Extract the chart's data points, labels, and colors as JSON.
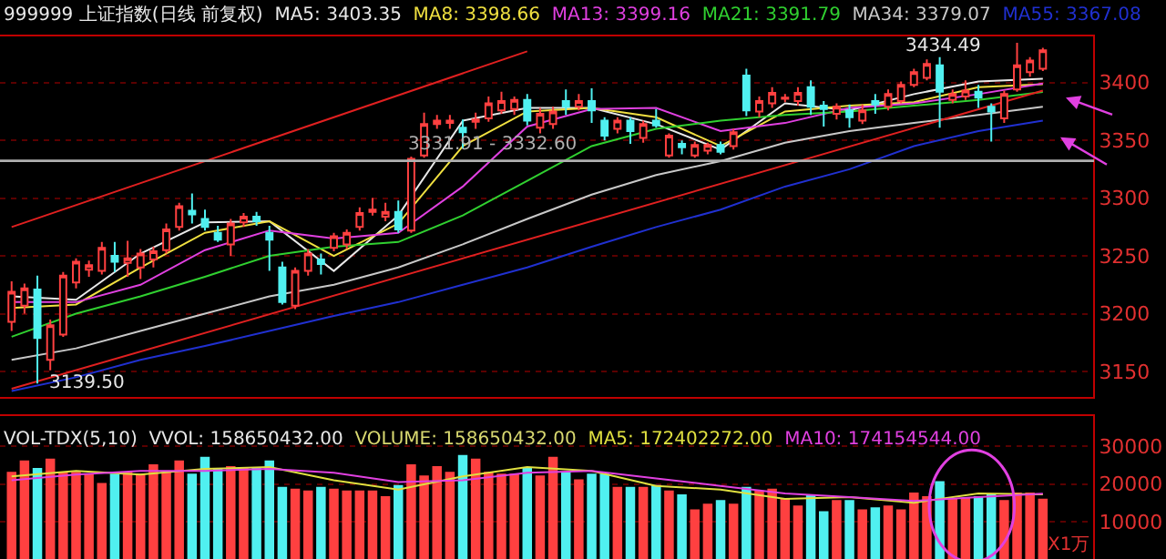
{
  "chart_data": [
    {
      "type": "candlestick",
      "title": "999999 上证指数(日线 前复权)",
      "categories": [
        null,
        null,
        null,
        null,
        null,
        null,
        null,
        null,
        null,
        null,
        null,
        null,
        null,
        null,
        null,
        null,
        null,
        null,
        null,
        null,
        null,
        null,
        null,
        null,
        null,
        null,
        null,
        null,
        null,
        null,
        null,
        null,
        null,
        null,
        null,
        null,
        null,
        null,
        null,
        null,
        null,
        null,
        null,
        null,
        null,
        null,
        null,
        null,
        null,
        null,
        null,
        null,
        null,
        null,
        null,
        null,
        null,
        null,
        null,
        null,
        null,
        null,
        null,
        null,
        null,
        null,
        null,
        null,
        null,
        null,
        null,
        null,
        null,
        null,
        null,
        null,
        null,
        null,
        null,
        null,
        null
      ],
      "ohlc": [
        [
          3193,
          3228,
          3185,
          3219
        ],
        [
          3207,
          3226,
          3200,
          3222
        ],
        [
          3221,
          3233,
          3139.5,
          3179
        ],
        [
          3160,
          3195,
          3151,
          3190
        ],
        [
          3182,
          3236,
          3180,
          3233
        ],
        [
          3227,
          3248,
          3222,
          3245
        ],
        [
          3238,
          3246,
          3232,
          3242
        ],
        [
          3237,
          3262,
          3234,
          3257
        ],
        [
          3250,
          3262,
          3236,
          3245
        ],
        [
          3244,
          3263,
          3232,
          3248
        ],
        [
          3240,
          3256,
          3230,
          3252
        ],
        [
          3247,
          3258,
          3240,
          3254
        ],
        [
          3255,
          3278,
          3252,
          3273
        ],
        [
          3275,
          3296,
          3272,
          3293
        ],
        [
          3289,
          3304,
          3278,
          3286
        ],
        [
          3282,
          3290,
          3272,
          3275
        ],
        [
          3270,
          3276,
          3262,
          3264
        ],
        [
          3260,
          3282,
          3250,
          3278
        ],
        [
          3279,
          3287,
          3275,
          3284
        ],
        [
          3284,
          3288,
          3276,
          3280
        ],
        [
          3270,
          3276,
          3237,
          3264
        ],
        [
          3240,
          3245,
          3208,
          3210
        ],
        [
          3207,
          3240,
          3204,
          3237
        ],
        [
          3237,
          3256,
          3233,
          3252
        ],
        [
          3247,
          3252,
          3234,
          3243
        ],
        [
          3257,
          3270,
          3254,
          3267
        ],
        [
          3260,
          3273,
          3256,
          3270
        ],
        [
          3275,
          3292,
          3272,
          3287
        ],
        [
          3288,
          3300,
          3285,
          3290
        ],
        [
          3284,
          3296,
          3280,
          3288
        ],
        [
          3288,
          3298,
          3270,
          3273
        ],
        [
          3272,
          3336,
          3270,
          3334
        ],
        [
          3337,
          3374,
          3335,
          3364
        ],
        [
          3364,
          3372,
          3360,
          3367
        ],
        [
          3365,
          3372,
          3360,
          3367
        ],
        [
          3361,
          3368,
          3343,
          3357
        ],
        [
          3366,
          3374,
          3360,
          3368
        ],
        [
          3369,
          3388,
          3366,
          3382
        ],
        [
          3376,
          3392,
          3373,
          3384
        ],
        [
          3377,
          3388,
          3372,
          3385
        ],
        [
          3385,
          3390,
          3363,
          3367
        ],
        [
          3361,
          3378,
          3356,
          3373
        ],
        [
          3364,
          3379,
          3360,
          3375
        ],
        [
          3384,
          3394,
          3372,
          3379
        ],
        [
          3379,
          3390,
          3376,
          3384
        ],
        [
          3384,
          3395,
          3365,
          3376
        ],
        [
          3367,
          3370,
          3350,
          3354
        ],
        [
          3360,
          3370,
          3356,
          3367
        ],
        [
          3367,
          3370,
          3347,
          3358
        ],
        [
          3352,
          3367,
          3348,
          3364
        ],
        [
          3367,
          3377,
          3361,
          3363
        ],
        [
          3337,
          3356,
          3335,
          3354
        ],
        [
          3347,
          3350,
          3338,
          3344
        ],
        [
          3337,
          3349,
          3335,
          3346
        ],
        [
          3341,
          3348,
          3338,
          3346
        ],
        [
          3346,
          3349,
          3338,
          3340
        ],
        [
          3345,
          3360,
          3342,
          3357
        ],
        [
          3406,
          3412,
          3371,
          3376
        ],
        [
          3375,
          3388,
          3370,
          3384
        ],
        [
          3382,
          3396,
          3378,
          3391
        ],
        [
          3386,
          3390,
          3383,
          3387
        ],
        [
          3384,
          3396,
          3380,
          3391
        ],
        [
          3396,
          3402,
          3372,
          3379
        ],
        [
          3380,
          3384,
          3362,
          3377
        ],
        [
          3373,
          3382,
          3368,
          3379
        ],
        [
          3376,
          3381,
          3361,
          3370
        ],
        [
          3367,
          3381,
          3364,
          3376
        ],
        [
          3384,
          3390,
          3373,
          3381
        ],
        [
          3379,
          3394,
          3376,
          3390
        ],
        [
          3384,
          3401,
          3382,
          3398
        ],
        [
          3398,
          3412,
          3396,
          3409
        ],
        [
          3404,
          3420,
          3402,
          3416
        ],
        [
          3415,
          3422,
          3361,
          3392
        ],
        [
          3385,
          3394,
          3382,
          3390
        ],
        [
          3388,
          3402,
          3385,
          3393
        ],
        [
          3392,
          3398,
          3378,
          3387
        ],
        [
          3379,
          3382,
          3349,
          3375
        ],
        [
          3369,
          3393,
          3365,
          3390
        ],
        [
          3394,
          3434.49,
          3392,
          3415
        ],
        [
          3409,
          3422,
          3405,
          3419
        ],
        [
          3412,
          3430,
          3410,
          3428
        ]
      ],
      "colors": [
        "#ff4040",
        "#ff4040",
        "#50f0f0",
        "#ff4040",
        "#ff4040",
        "#ff4040",
        "#ff4040",
        "#ff4040",
        "#50f0f0",
        "#ff4040",
        "#ff4040",
        "#ff4040",
        "#ff4040",
        "#ff4040",
        "#50f0f0",
        "#50f0f0",
        "#50f0f0",
        "#ff4040",
        "#ff4040",
        "#50f0f0",
        "#50f0f0",
        "#50f0f0",
        "#ff4040",
        "#ff4040",
        "#50f0f0",
        "#ff4040",
        "#ff4040",
        "#ff4040",
        "#ff4040",
        "#ff4040",
        "#50f0f0",
        "#ff4040",
        "#ff4040",
        "#ff4040",
        "#ff4040",
        "#50f0f0",
        "#ff4040",
        "#ff4040",
        "#ff4040",
        "#ff4040",
        "#50f0f0",
        "#ff4040",
        "#ff4040",
        "#50f0f0",
        "#ff4040",
        "#50f0f0",
        "#50f0f0",
        "#ff4040",
        "#50f0f0",
        "#ff4040",
        "#50f0f0",
        "#ff4040",
        "#50f0f0",
        "#ff4040",
        "#ff4040",
        "#50f0f0",
        "#ff4040",
        "#50f0f0",
        "#ff4040",
        "#ff4040",
        "#ff4040",
        "#ff4040",
        "#50f0f0",
        "#50f0f0",
        "#ff4040",
        "#50f0f0",
        "#ff4040",
        "#50f0f0",
        "#ff4040",
        "#ff4040",
        "#ff4040",
        "#ff4040",
        "#50f0f0",
        "#ff4040",
        "#ff4040",
        "#50f0f0",
        "#50f0f0",
        "#ff4040",
        "#ff4040",
        "#ff4040",
        "#ff4040"
      ],
      "series": [
        {
          "type": "line",
          "name": "MA5: 3403.35",
          "color": "#e8e8e8",
          "values": [
            3215,
            null,
            null,
            null,
            null,
            3212,
            null,
            null,
            null,
            null,
            3252,
            null,
            null,
            null,
            null,
            3279,
            null,
            null,
            null,
            null,
            3280,
            null,
            null,
            null,
            null,
            3237,
            null,
            null,
            null,
            null,
            3285,
            null,
            null,
            null,
            null,
            3367,
            null,
            null,
            null,
            null,
            3378,
            null,
            null,
            null,
            null,
            3378,
            null,
            null,
            null,
            null,
            3364,
            null,
            null,
            null,
            null,
            3342,
            null,
            null,
            null,
            null,
            3382,
            null,
            null,
            null,
            null,
            3376,
            null,
            null,
            null,
            null,
            3390,
            null,
            null,
            null,
            null,
            3401,
            null,
            null,
            null,
            null,
            3403.35
          ]
        },
        {
          "type": "line",
          "name": "MA8: 3398.66",
          "color": "#f0e040",
          "values": [
            3205,
            null,
            null,
            null,
            null,
            3208,
            null,
            null,
            null,
            null,
            3240,
            null,
            null,
            null,
            null,
            3270,
            null,
            null,
            null,
            null,
            3280,
            null,
            null,
            null,
            null,
            3250,
            null,
            null,
            null,
            null,
            3278,
            null,
            null,
            null,
            null,
            3345,
            null,
            null,
            null,
            null,
            3375,
            null,
            null,
            null,
            null,
            3378,
            null,
            null,
            null,
            null,
            3370,
            null,
            null,
            null,
            null,
            3345,
            null,
            null,
            null,
            null,
            3375,
            null,
            null,
            null,
            null,
            3380,
            null,
            null,
            null,
            null,
            3383,
            null,
            null,
            null,
            null,
            3396,
            null,
            null,
            null,
            null,
            3398.66
          ]
        },
        {
          "type": "line",
          "name": "MA13: 3399.16",
          "color": "#e040e0",
          "values": [
            3210,
            null,
            null,
            null,
            null,
            3210,
            null,
            null,
            null,
            null,
            3225,
            null,
            null,
            null,
            null,
            3255,
            null,
            null,
            null,
            null,
            3272,
            null,
            null,
            null,
            null,
            3265,
            null,
            null,
            null,
            null,
            3270,
            null,
            null,
            null,
            null,
            3310,
            null,
            null,
            null,
            null,
            3362,
            null,
            null,
            null,
            null,
            3377,
            null,
            null,
            null,
            null,
            3378,
            null,
            null,
            null,
            null,
            3358,
            null,
            null,
            null,
            null,
            3365,
            null,
            null,
            null,
            null,
            3378,
            null,
            null,
            null,
            null,
            3382,
            null,
            null,
            null,
            null,
            3390,
            null,
            null,
            null,
            null,
            3399.16
          ]
        },
        {
          "type": "line",
          "name": "MA21: 3391.79",
          "color": "#30d030",
          "values": [
            3180,
            null,
            null,
            null,
            null,
            3200,
            null,
            null,
            null,
            null,
            3215,
            null,
            null,
            null,
            null,
            3232,
            null,
            null,
            null,
            null,
            3250,
            null,
            null,
            null,
            null,
            3258,
            null,
            null,
            null,
            null,
            3262,
            null,
            null,
            null,
            null,
            3285,
            null,
            null,
            null,
            null,
            3315,
            null,
            null,
            null,
            null,
            3345,
            null,
            null,
            null,
            null,
            3360,
            null,
            null,
            null,
            null,
            3367,
            null,
            null,
            null,
            null,
            3372,
            null,
            null,
            null,
            null,
            3375,
            null,
            null,
            null,
            null,
            3380,
            null,
            null,
            null,
            null,
            3385,
            null,
            null,
            null,
            null,
            3391.79
          ]
        },
        {
          "type": "line",
          "name": "MA34: 3379.07",
          "color": "#c8c8c8",
          "values": [
            3160,
            null,
            null,
            null,
            null,
            3170,
            null,
            null,
            null,
            null,
            3185,
            null,
            null,
            null,
            null,
            3200,
            null,
            null,
            null,
            null,
            3215,
            null,
            null,
            null,
            null,
            3225,
            null,
            null,
            null,
            null,
            3240,
            null,
            null,
            null,
            null,
            3260,
            null,
            null,
            null,
            null,
            3282,
            null,
            null,
            null,
            null,
            3303,
            null,
            null,
            null,
            null,
            3320,
            null,
            null,
            null,
            null,
            3332,
            null,
            null,
            null,
            null,
            3348,
            null,
            null,
            null,
            null,
            3358,
            null,
            null,
            null,
            null,
            3365,
            null,
            null,
            null,
            null,
            3372,
            null,
            null,
            null,
            null,
            3379.07
          ]
        },
        {
          "type": "line",
          "name": "MA55: 3367.08",
          "color": "#2030d0",
          "values": [
            3133,
            null,
            null,
            null,
            null,
            3145,
            null,
            null,
            null,
            null,
            3160,
            null,
            null,
            null,
            null,
            3172,
            null,
            null,
            null,
            null,
            3185,
            null,
            null,
            null,
            null,
            3198,
            null,
            null,
            null,
            null,
            3210,
            null,
            null,
            null,
            null,
            3225,
            null,
            null,
            null,
            null,
            3240,
            null,
            null,
            null,
            null,
            3258,
            null,
            null,
            null,
            null,
            3275,
            null,
            null,
            null,
            null,
            3290,
            null,
            null,
            null,
            null,
            3310,
            null,
            null,
            null,
            null,
            3325,
            null,
            null,
            null,
            null,
            3345,
            null,
            null,
            null,
            null,
            3358,
            null,
            null,
            null,
            null,
            3367.08
          ]
        },
        {
          "type": "line",
          "color": "#e02020",
          "values": [
            3275,
            null,
            null,
            null,
            null,
            null,
            null,
            null,
            null,
            null,
            null,
            null,
            null,
            null,
            null,
            null,
            null,
            null,
            null,
            null,
            null,
            null,
            null,
            null,
            null,
            null,
            null,
            null,
            null,
            null,
            null,
            null,
            null,
            null,
            null,
            null,
            null,
            null,
            null,
            null,
            3427,
            null,
            null,
            null,
            null,
            null,
            null,
            null,
            null,
            null,
            null,
            null,
            null,
            null,
            null,
            null,
            null,
            null,
            null,
            null,
            null,
            null,
            null,
            null,
            null,
            null,
            null,
            null,
            null,
            null,
            null,
            null,
            null,
            null,
            null,
            null,
            null,
            null,
            null,
            null,
            null
          ]
        },
        {
          "type": "line",
          "color": "#e02020",
          "values": [
            3135,
            null,
            null,
            null,
            null,
            null,
            null,
            null,
            null,
            null,
            null,
            null,
            null,
            null,
            null,
            null,
            null,
            null,
            null,
            null,
            null,
            null,
            null,
            null,
            null,
            null,
            null,
            null,
            null,
            null,
            null,
            null,
            null,
            null,
            null,
            null,
            null,
            null,
            null,
            null,
            null,
            null,
            null,
            null,
            null,
            null,
            null,
            null,
            null,
            null,
            null,
            null,
            null,
            null,
            null,
            null,
            null,
            null,
            null,
            null,
            null,
            null,
            null,
            null,
            null,
            null,
            null,
            null,
            null,
            null,
            null,
            null,
            null,
            null,
            null,
            null,
            null,
            null,
            null,
            null,
            3393
          ]
        }
      ],
      "ylim": [
        3128,
        3440
      ],
      "yticks": [
        3150,
        3200,
        3250,
        3300,
        3350,
        3400
      ],
      "grid": "y",
      "tick_labels": "y",
      "bands": [
        {
          "axis": "y",
          "from": 3331.91,
          "to": 3332.6,
          "label": "3331.91 - 3332.60",
          "color": "#b0b0b0"
        }
      ],
      "annotations": [
        {
          "text": "3139.50",
          "y": 3139.5
        },
        "3434.49"
      ]
    },
    {
      "type": "bar",
      "title": "VOL-TDX(5,10)",
      "ylabel": "X1万",
      "categories": [
        null,
        null,
        null,
        null,
        null,
        null,
        null,
        null,
        null,
        null,
        null,
        null,
        null,
        null,
        null,
        null,
        null,
        null,
        null,
        null,
        null,
        null,
        null,
        null,
        null,
        null,
        null,
        null,
        null,
        null,
        null,
        null,
        null,
        null,
        null,
        null,
        null,
        null,
        null,
        null,
        null,
        null,
        null,
        null,
        null,
        null,
        null,
        null,
        null,
        null,
        null,
        null,
        null,
        null,
        null,
        null,
        null,
        null,
        null,
        null,
        null,
        null,
        null,
        null,
        null,
        null,
        null,
        null,
        null,
        null,
        null,
        null,
        null,
        null,
        null,
        null,
        null,
        null,
        null,
        null,
        null
      ],
      "series": [
        {
          "type": "bar",
          "name": "VOLUME: 158650432.00",
          "colors": [
            "#ff4040",
            "#ff4040",
            "#50f0f0",
            "#ff4040",
            "#ff4040",
            "#ff4040",
            "#ff4040",
            "#ff4040",
            "#50f0f0",
            "#ff4040",
            "#ff4040",
            "#ff4040",
            "#ff4040",
            "#ff4040",
            "#50f0f0",
            "#50f0f0",
            "#50f0f0",
            "#ff4040",
            "#ff4040",
            "#50f0f0",
            "#50f0f0",
            "#50f0f0",
            "#ff4040",
            "#ff4040",
            "#50f0f0",
            "#ff4040",
            "#ff4040",
            "#ff4040",
            "#ff4040",
            "#ff4040",
            "#50f0f0",
            "#ff4040",
            "#ff4040",
            "#ff4040",
            "#ff4040",
            "#50f0f0",
            "#ff4040",
            "#ff4040",
            "#ff4040",
            "#ff4040",
            "#50f0f0",
            "#ff4040",
            "#ff4040",
            "#50f0f0",
            "#ff4040",
            "#50f0f0",
            "#50f0f0",
            "#ff4040",
            "#50f0f0",
            "#ff4040",
            "#50f0f0",
            "#ff4040",
            "#50f0f0",
            "#ff4040",
            "#ff4040",
            "#50f0f0",
            "#ff4040",
            "#50f0f0",
            "#ff4040",
            "#ff4040",
            "#ff4040",
            "#ff4040",
            "#50f0f0",
            "#50f0f0",
            "#ff4040",
            "#50f0f0",
            "#ff4040",
            "#50f0f0",
            "#ff4040",
            "#ff4040",
            "#ff4040",
            "#ff4040",
            "#50f0f0",
            "#ff4040",
            "#ff4040",
            "#50f0f0",
            "#50f0f0",
            "#ff4040",
            "#ff4040",
            "#ff4040",
            "#ff4040"
          ],
          "values": [
            23000,
            26000,
            24000,
            26500,
            23000,
            23000,
            22500,
            20000,
            22500,
            23000,
            22500,
            25000,
            23000,
            26000,
            22500,
            27000,
            24000,
            24500,
            24000,
            24000,
            26000,
            19000,
            18500,
            18000,
            19000,
            18500,
            18000,
            18000,
            18000,
            16500,
            19500,
            25000,
            22000,
            24500,
            23000,
            27500,
            26500,
            23000,
            22500,
            22500,
            24000,
            22000,
            27000,
            23000,
            21000,
            22500,
            22500,
            19000,
            19000,
            19000,
            19500,
            18000,
            17000,
            13000,
            14500,
            15500,
            14500,
            19000,
            18000,
            18500,
            16000,
            14000,
            17000,
            12500,
            15500,
            15500,
            13000,
            13500,
            14000,
            13000,
            17500,
            16500,
            20500,
            16000,
            16000,
            16500,
            17000,
            15500,
            17500,
            17500,
            15865
          ]
        },
        {
          "type": "line",
          "name": "MA5: 172402272.00",
          "color": "#e0e040",
          "values": [
            22000,
            null,
            null,
            null,
            null,
            23500,
            null,
            null,
            null,
            null,
            22500,
            null,
            null,
            null,
            null,
            24000,
            null,
            null,
            null,
            null,
            24500,
            null,
            null,
            null,
            null,
            21000,
            null,
            null,
            null,
            null,
            18500,
            null,
            null,
            null,
            null,
            22000,
            null,
            null,
            null,
            null,
            24500,
            null,
            null,
            null,
            null,
            23500,
            null,
            null,
            null,
            null,
            19500,
            null,
            null,
            null,
            null,
            18500,
            null,
            null,
            null,
            null,
            16000,
            null,
            null,
            null,
            null,
            16500,
            null,
            null,
            null,
            null,
            15000,
            null,
            null,
            null,
            null,
            17500,
            null,
            null,
            null,
            null,
            17240
          ]
        },
        {
          "type": "line",
          "name": "MA10: 174154544.00",
          "color": "#e040e0",
          "values": [
            21000,
            null,
            null,
            null,
            null,
            22500,
            null,
            null,
            null,
            null,
            23500,
            null,
            null,
            null,
            null,
            23500,
            null,
            null,
            null,
            null,
            24000,
            null,
            null,
            null,
            null,
            23000,
            null,
            null,
            null,
            null,
            20500,
            null,
            null,
            null,
            null,
            21000,
            null,
            null,
            null,
            null,
            23000,
            null,
            null,
            null,
            null,
            23500,
            null,
            null,
            null,
            null,
            21500,
            null,
            null,
            null,
            null,
            19500,
            null,
            null,
            null,
            null,
            17500,
            null,
            null,
            null,
            null,
            16500,
            null,
            null,
            null,
            null,
            15500,
            null,
            null,
            null,
            null,
            16500,
            null,
            null,
            null,
            null,
            17415
          ]
        }
      ],
      "ylim": [
        0,
        38000
      ],
      "yticks": [
        10000,
        20000,
        30000
      ],
      "grid": "y",
      "tick_labels": "y",
      "annotations": [
        "VVOL: 158650432.00"
      ]
    }
  ]
}
